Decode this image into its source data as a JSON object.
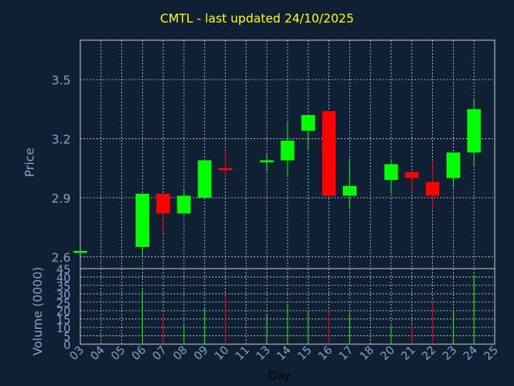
{
  "chart_data": {
    "type": "candlestick",
    "title": "CMTL - last updated 24/10/2025",
    "price_panel": {
      "ylabel": "Price",
      "ylim": [
        2.54,
        3.7
      ],
      "yticks": [
        2.6,
        2.9,
        3.2,
        3.5
      ],
      "ytick_labels": [
        "2.6",
        "2.9",
        "3.2",
        "3.5"
      ]
    },
    "volume_panel": {
      "ylabel": "Volume (0000)",
      "ylim": [
        0,
        45
      ],
      "yticks": [
        0,
        5,
        10,
        15,
        20,
        25,
        30,
        35,
        40,
        45
      ],
      "ytick_labels": [
        "0",
        "5",
        "10",
        "15",
        "20",
        "25",
        "30",
        "35",
        "40",
        "45"
      ]
    },
    "xlabel": "Day",
    "x_ticks": [
      "03",
      "04",
      "05",
      "06",
      "07",
      "08",
      "09",
      "10",
      "11",
      "13",
      "14",
      "15",
      "16",
      "17",
      "18",
      "20",
      "21",
      "22",
      "23",
      "24",
      "25"
    ],
    "grid": true,
    "colors": {
      "background": "#0f2035",
      "title": "#ffff00",
      "axis_text": "#8aa0c8",
      "grid": "#c8c8c8",
      "up": "#00ff00",
      "down": "#ff0000",
      "neutral": "#00ff00"
    },
    "candles": [
      {
        "day": "03",
        "open": 2.62,
        "high": 2.63,
        "low": 2.62,
        "close": 2.63,
        "volume": 0
      },
      {
        "day": "06",
        "open": 2.65,
        "high": 2.92,
        "low": 2.6,
        "close": 2.92,
        "volume": 32
      },
      {
        "day": "07",
        "open": 2.92,
        "high": 2.92,
        "low": 2.72,
        "close": 2.82,
        "volume": 18
      },
      {
        "day": "08",
        "open": 2.82,
        "high": 2.94,
        "low": 2.82,
        "close": 2.91,
        "volume": 12
      },
      {
        "day": "09",
        "open": 2.9,
        "high": 3.09,
        "low": 2.9,
        "close": 3.09,
        "volume": 21
      },
      {
        "day": "10",
        "open": 3.05,
        "high": 3.14,
        "low": 3.0,
        "close": 3.04,
        "volume": 29
      },
      {
        "day": "13",
        "open": 3.08,
        "high": 3.12,
        "low": 3.03,
        "close": 3.09,
        "volume": 18
      },
      {
        "day": "14",
        "open": 3.09,
        "high": 3.29,
        "low": 3.01,
        "close": 3.19,
        "volume": 23
      },
      {
        "day": "15",
        "open": 3.24,
        "high": 3.32,
        "low": 3.14,
        "close": 3.32,
        "volume": 20
      },
      {
        "day": "16",
        "open": 3.34,
        "high": 3.34,
        "low": 2.91,
        "close": 2.91,
        "volume": 20
      },
      {
        "day": "17",
        "open": 2.91,
        "high": 3.1,
        "low": 2.84,
        "close": 2.96,
        "volume": 19
      },
      {
        "day": "20",
        "open": 2.99,
        "high": 3.09,
        "low": 2.92,
        "close": 3.07,
        "volume": 11
      },
      {
        "day": "21",
        "open": 3.03,
        "high": 3.04,
        "low": 2.93,
        "close": 3.0,
        "volume": 11
      },
      {
        "day": "22",
        "open": 2.98,
        "high": 3.09,
        "low": 2.84,
        "close": 2.91,
        "volume": 26
      },
      {
        "day": "23",
        "open": 3.0,
        "high": 3.13,
        "low": 2.95,
        "close": 3.13,
        "volume": 20
      },
      {
        "day": "24",
        "open": 3.13,
        "high": 3.4,
        "low": 3.06,
        "close": 3.35,
        "volume": 41
      }
    ]
  }
}
